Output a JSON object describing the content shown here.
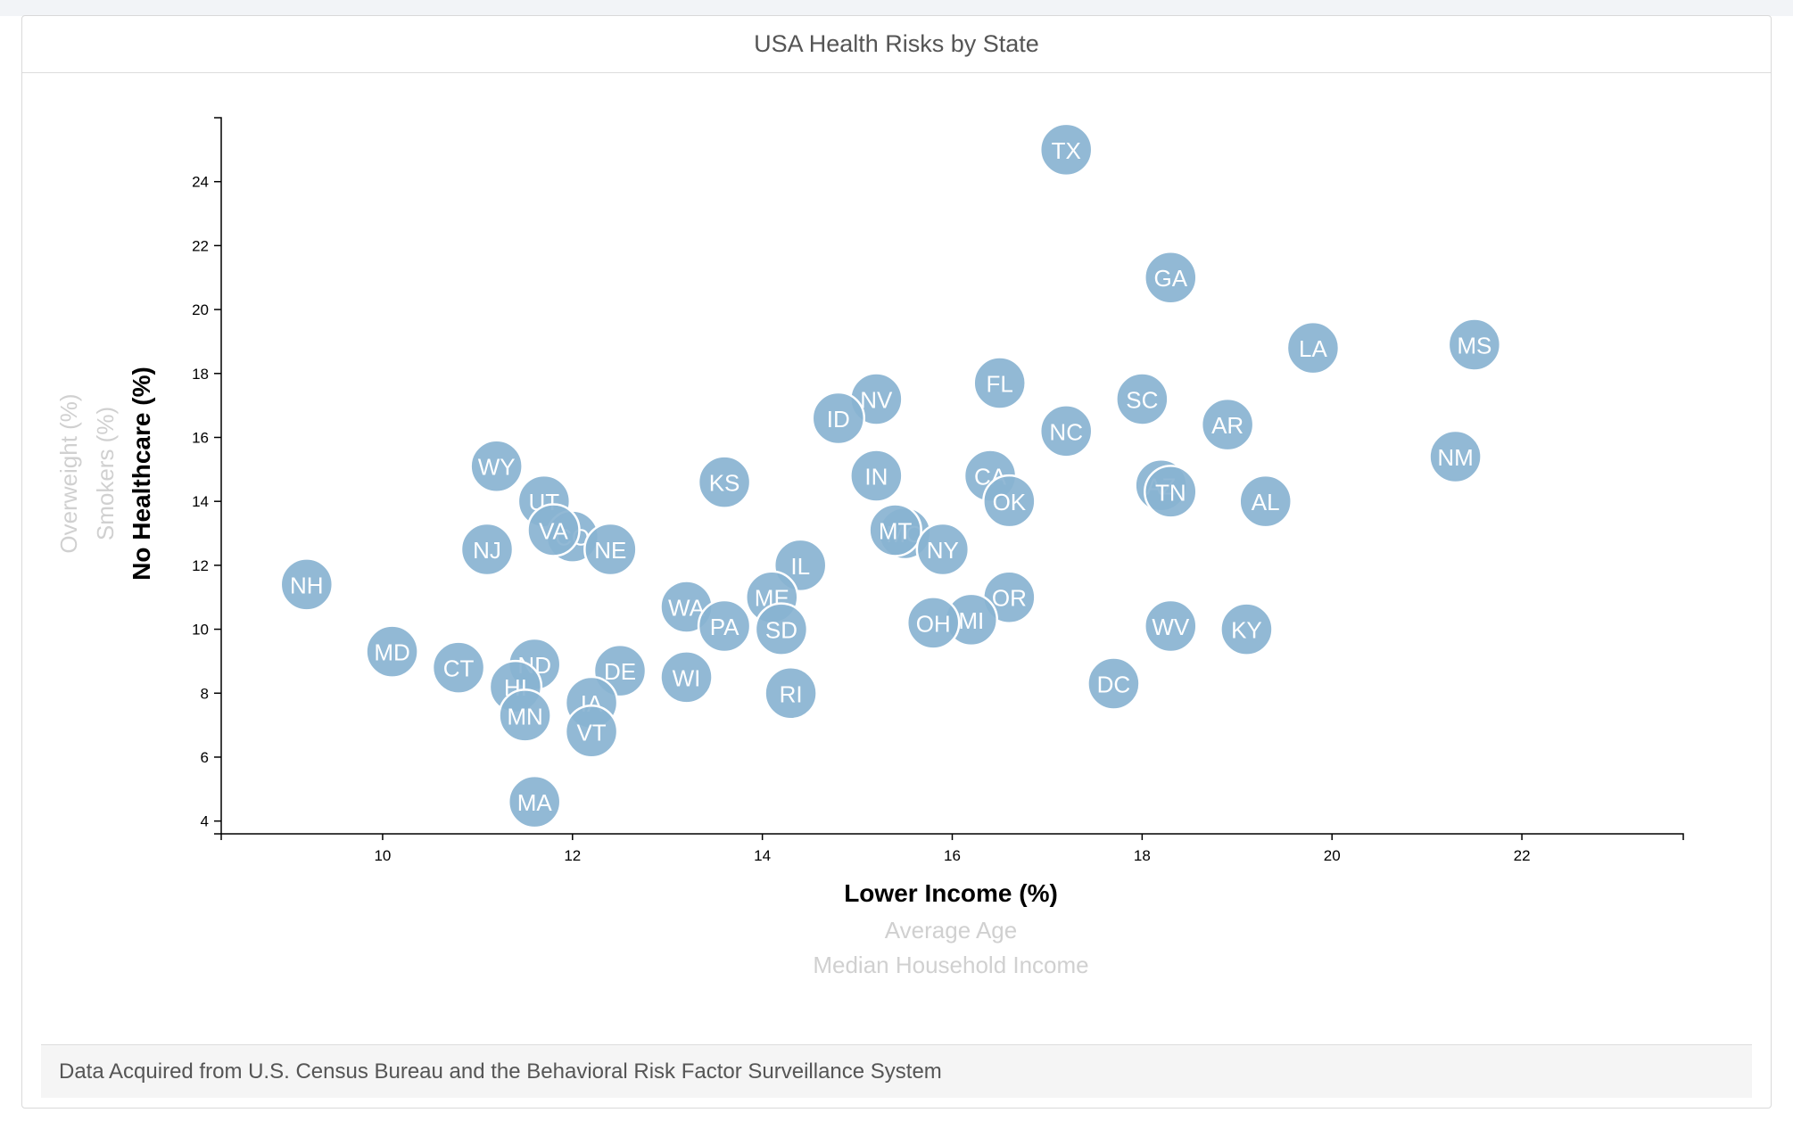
{
  "title": "USA Health Risks by State",
  "footer_text": "Data Acquired from U.S. Census Bureau and the Behavioral Risk Factor Surveillance System",
  "colors": {
    "circle_fill": "#89b3d1",
    "circle_stroke": "#ffffff",
    "active_label": "#000000",
    "inactive_label": "#d0d0d0"
  },
  "x_axis_titles": [
    {
      "label": "Lower Income (%)",
      "active": true
    },
    {
      "label": "Average Age",
      "active": false
    },
    {
      "label": "Median Household Income",
      "active": false
    }
  ],
  "y_axis_titles": [
    {
      "label": "No Healthcare (%)",
      "active": true
    },
    {
      "label": "Smokers (%)",
      "active": false
    },
    {
      "label": "Overweight (%)",
      "active": false
    }
  ],
  "chart_data": {
    "type": "scatter",
    "title": "USA Health Risks by State",
    "xlabel": "Lower Income (%)",
    "ylabel": "No Healthcare (%)",
    "xlim": [
      8.3,
      23.7
    ],
    "ylim": [
      3.6,
      26.0
    ],
    "x_ticks": [
      10,
      12,
      14,
      16,
      18,
      20,
      22
    ],
    "y_ticks": [
      4,
      6,
      8,
      10,
      12,
      14,
      16,
      18,
      20,
      22,
      24
    ],
    "grid": false,
    "points": [
      {
        "label": "TX",
        "x": 17.2,
        "y": 25.0
      },
      {
        "label": "GA",
        "x": 18.3,
        "y": 21.0
      },
      {
        "label": "MS",
        "x": 21.5,
        "y": 18.9
      },
      {
        "label": "LA",
        "x": 19.8,
        "y": 18.8
      },
      {
        "label": "FL",
        "x": 16.5,
        "y": 17.7
      },
      {
        "label": "SC",
        "x": 18.0,
        "y": 17.2
      },
      {
        "label": "NV",
        "x": 15.2,
        "y": 17.2
      },
      {
        "label": "ID",
        "x": 14.8,
        "y": 16.6
      },
      {
        "label": "AR",
        "x": 18.9,
        "y": 16.4
      },
      {
        "label": "NC",
        "x": 17.2,
        "y": 16.2
      },
      {
        "label": "NM",
        "x": 21.3,
        "y": 15.4
      },
      {
        "label": "WY",
        "x": 11.2,
        "y": 15.1
      },
      {
        "label": "KS",
        "x": 13.6,
        "y": 14.6
      },
      {
        "label": "IN",
        "x": 15.2,
        "y": 14.8
      },
      {
        "label": "CA",
        "x": 16.4,
        "y": 14.8
      },
      {
        "label": "AZ",
        "x": 18.2,
        "y": 14.5
      },
      {
        "label": "TN",
        "x": 18.3,
        "y": 14.3
      },
      {
        "label": "OK",
        "x": 16.6,
        "y": 14.0
      },
      {
        "label": "AL",
        "x": 19.3,
        "y": 14.0
      },
      {
        "label": "UT",
        "x": 11.7,
        "y": 14.0
      },
      {
        "label": "CO",
        "x": 12.0,
        "y": 12.9
      },
      {
        "label": "VA",
        "x": 11.8,
        "y": 13.1
      },
      {
        "label": "MO",
        "x": 15.5,
        "y": 13.0
      },
      {
        "label": "MT",
        "x": 15.4,
        "y": 13.1
      },
      {
        "label": "NJ",
        "x": 11.1,
        "y": 12.5
      },
      {
        "label": "NE",
        "x": 12.4,
        "y": 12.5
      },
      {
        "label": "NY",
        "x": 15.9,
        "y": 12.5
      },
      {
        "label": "IL",
        "x": 14.4,
        "y": 12.0
      },
      {
        "label": "NH",
        "x": 9.2,
        "y": 11.4
      },
      {
        "label": "WA",
        "x": 13.2,
        "y": 10.7
      },
      {
        "label": "ME",
        "x": 14.1,
        "y": 11.0
      },
      {
        "label": "OR",
        "x": 16.6,
        "y": 11.0
      },
      {
        "label": "PA",
        "x": 13.6,
        "y": 10.1
      },
      {
        "label": "SD",
        "x": 14.2,
        "y": 10.0
      },
      {
        "label": "MI",
        "x": 16.2,
        "y": 10.3
      },
      {
        "label": "OH",
        "x": 15.8,
        "y": 10.2
      },
      {
        "label": "WV",
        "x": 18.3,
        "y": 10.1
      },
      {
        "label": "KY",
        "x": 19.1,
        "y": 10.0
      },
      {
        "label": "MD",
        "x": 10.1,
        "y": 9.3
      },
      {
        "label": "CT",
        "x": 10.8,
        "y": 8.8
      },
      {
        "label": "ND",
        "x": 11.6,
        "y": 8.9
      },
      {
        "label": "DE",
        "x": 12.5,
        "y": 8.7
      },
      {
        "label": "WI",
        "x": 13.2,
        "y": 8.5
      },
      {
        "label": "DC",
        "x": 17.7,
        "y": 8.3
      },
      {
        "label": "HI",
        "x": 11.4,
        "y": 8.2
      },
      {
        "label": "RI",
        "x": 14.3,
        "y": 8.0
      },
      {
        "label": "IA",
        "x": 12.2,
        "y": 7.7
      },
      {
        "label": "MN",
        "x": 11.5,
        "y": 7.3
      },
      {
        "label": "VT",
        "x": 12.2,
        "y": 6.8
      },
      {
        "label": "MA",
        "x": 11.6,
        "y": 4.6
      }
    ]
  }
}
